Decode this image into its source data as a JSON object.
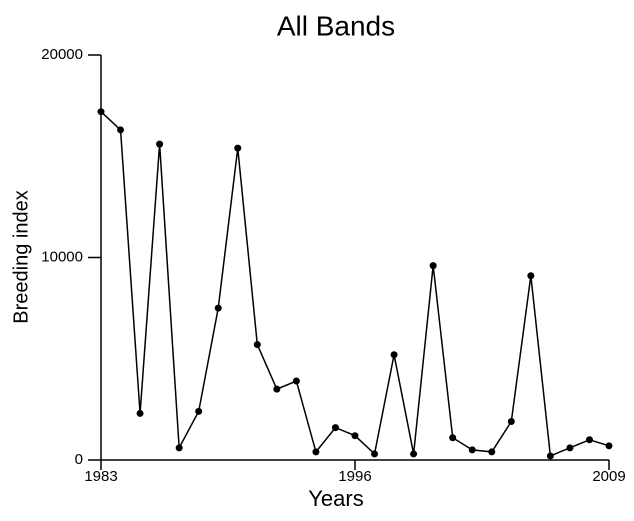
{
  "chart_data": {
    "type": "line",
    "title": "All Bands",
    "xlabel": "Years",
    "ylabel": "Breeding index",
    "x": [
      1983,
      1984,
      1985,
      1986,
      1987,
      1988,
      1989,
      1990,
      1991,
      1992,
      1993,
      1994,
      1995,
      1996,
      1997,
      1998,
      1999,
      2000,
      2001,
      2002,
      2003,
      2004,
      2005,
      2006,
      2007,
      2008,
      2009
    ],
    "series": [
      {
        "color": "#000000",
        "values": [
          17200,
          16300,
          2300,
          15600,
          600,
          2400,
          7500,
          15400,
          5700,
          3500,
          3900,
          400,
          1600,
          1200,
          300,
          5200,
          300,
          9600,
          1100,
          500,
          400,
          1900,
          9100,
          200,
          600,
          1000,
          700
        ]
      }
    ],
    "xlim": [
      1983,
      2009
    ],
    "xticks": [
      1983,
      1996,
      2009
    ],
    "ylim": [
      0,
      20000
    ],
    "yticks": [
      0,
      10000,
      20000
    ]
  }
}
